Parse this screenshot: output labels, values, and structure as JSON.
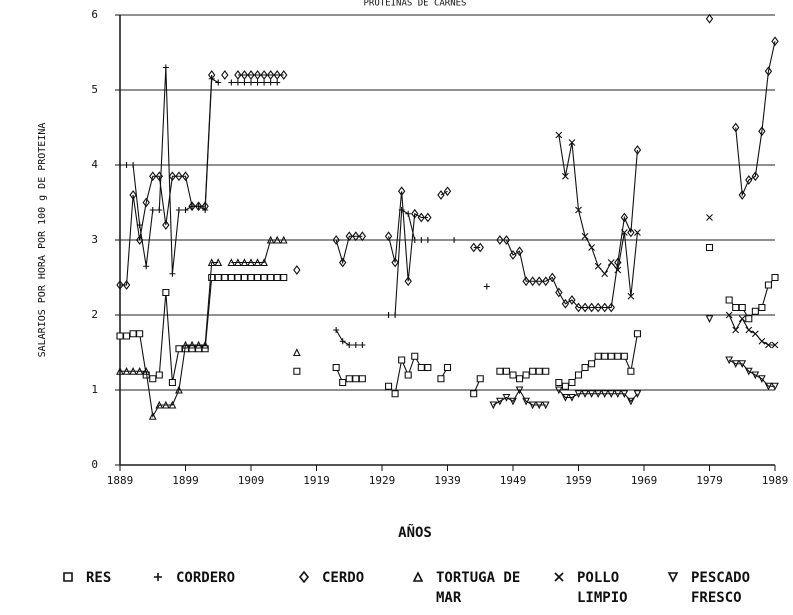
{
  "chart_data": {
    "type": "line",
    "title": "PROTEINAS DE CARNES",
    "y_label": "SALARIOS POR HORA POR 100 g DE PROTEINA",
    "x_label": "AÑOS",
    "xlim": [
      1889,
      1989
    ],
    "xticks": [
      1889,
      1899,
      1909,
      1919,
      1929,
      1939,
      1949,
      1959,
      1969,
      1979,
      1989
    ],
    "ylim": [
      0,
      6
    ],
    "yticks": [
      0,
      1,
      2,
      3,
      4,
      5,
      6
    ],
    "grid": true,
    "x": [
      1889,
      1890,
      1891,
      1892,
      1893,
      1894,
      1895,
      1896,
      1897,
      1898,
      1899,
      1900,
      1901,
      1902,
      1903,
      1904,
      1905,
      1906,
      1907,
      1908,
      1909,
      1910,
      1911,
      1912,
      1913,
      1914,
      1915,
      1916,
      1917,
      1918,
      1919,
      1920,
      1921,
      1922,
      1923,
      1924,
      1925,
      1926,
      1927,
      1928,
      1929,
      1930,
      1931,
      1932,
      1933,
      1934,
      1935,
      1936,
      1937,
      1938,
      1939,
      1940,
      1941,
      1942,
      1943,
      1944,
      1945,
      1946,
      1947,
      1948,
      1949,
      1950,
      1951,
      1952,
      1953,
      1954,
      1955,
      1956,
      1957,
      1958,
      1959,
      1960,
      1961,
      1962,
      1963,
      1964,
      1965,
      1966,
      1967,
      1968,
      1969,
      1970,
      1971,
      1972,
      1973,
      1974,
      1975,
      1976,
      1977,
      1978,
      1979,
      1980,
      1981,
      1982,
      1983,
      1984,
      1985,
      1986,
      1987,
      1988,
      1989
    ],
    "series": [
      {
        "name": "RES",
        "marker": "square",
        "color": "#111111",
        "values": [
          1.72,
          1.72,
          1.75,
          1.75,
          1.2,
          1.15,
          1.2,
          2.3,
          1.1,
          1.55,
          1.55,
          1.55,
          1.55,
          1.55,
          2.5,
          2.5,
          2.5,
          2.5,
          2.5,
          2.5,
          2.5,
          2.5,
          2.5,
          2.5,
          2.5,
          2.5,
          null,
          1.25,
          null,
          null,
          null,
          null,
          null,
          1.3,
          1.1,
          1.15,
          1.15,
          1.15,
          null,
          null,
          null,
          1.05,
          0.95,
          1.4,
          1.2,
          1.45,
          1.3,
          1.3,
          null,
          1.15,
          1.3,
          null,
          null,
          null,
          0.95,
          1.15,
          null,
          null,
          1.25,
          1.25,
          1.2,
          1.15,
          1.2,
          1.25,
          1.25,
          1.25,
          null,
          1.1,
          1.05,
          1.1,
          1.2,
          1.3,
          1.35,
          1.45,
          1.45,
          1.45,
          1.45,
          1.45,
          1.25,
          1.75,
          null,
          null,
          null,
          null,
          null,
          null,
          null,
          null,
          null,
          null,
          2.9,
          null,
          null,
          2.2,
          2.1,
          2.1,
          1.95,
          2.05,
          2.1,
          2.4,
          2.5
        ]
      },
      {
        "name": "CORDERO",
        "marker": "plus",
        "color": "#111111",
        "values": [
          4.0,
          4.0,
          4.0,
          3.2,
          2.65,
          3.4,
          3.4,
          5.3,
          2.55,
          3.4,
          3.4,
          3.45,
          3.45,
          3.4,
          5.15,
          5.1,
          null,
          5.1,
          5.1,
          5.1,
          5.1,
          5.1,
          5.1,
          5.1,
          5.1,
          null,
          null,
          null,
          null,
          null,
          null,
          null,
          null,
          1.8,
          1.65,
          1.6,
          1.6,
          1.6,
          null,
          null,
          null,
          2.0,
          2.0,
          3.4,
          3.35,
          3.0,
          3.0,
          3.0,
          null,
          null,
          null,
          3.0,
          null,
          null,
          null,
          null,
          2.38,
          null,
          null,
          null,
          null,
          null,
          null,
          null,
          null,
          null,
          null,
          null,
          null,
          null,
          null,
          null,
          null,
          null,
          null,
          null,
          null,
          null,
          null,
          null,
          null,
          null,
          null,
          null,
          null,
          null,
          null,
          null,
          null,
          null,
          null,
          null,
          null,
          null,
          null,
          null,
          null,
          null,
          null,
          null,
          null
        ]
      },
      {
        "name": "CERDO",
        "marker": "diamond",
        "color": "#111111",
        "values": [
          2.4,
          2.4,
          3.6,
          3.0,
          3.5,
          3.85,
          3.85,
          3.2,
          3.85,
          3.85,
          3.85,
          3.45,
          3.45,
          3.45,
          5.2,
          null,
          5.2,
          null,
          5.2,
          5.2,
          5.2,
          5.2,
          5.2,
          5.2,
          5.2,
          5.2,
          null,
          2.6,
          null,
          null,
          null,
          null,
          null,
          3.0,
          2.7,
          3.05,
          3.05,
          3.05,
          null,
          null,
          null,
          3.05,
          2.7,
          3.65,
          2.45,
          3.35,
          3.3,
          3.3,
          null,
          3.6,
          3.65,
          null,
          null,
          null,
          2.9,
          2.9,
          null,
          null,
          3.0,
          3.0,
          2.8,
          2.85,
          2.45,
          2.45,
          2.45,
          2.45,
          2.5,
          2.3,
          2.15,
          2.2,
          2.1,
          2.1,
          2.1,
          2.1,
          2.1,
          2.1,
          2.7,
          3.3,
          3.1,
          4.2,
          null,
          null,
          null,
          null,
          null,
          null,
          null,
          null,
          null,
          null,
          5.95,
          null,
          null,
          null,
          4.5,
          3.6,
          3.8,
          3.85,
          4.45,
          5.25,
          5.65
        ]
      },
      {
        "name": "TORTUGA DE MAR",
        "marker": "triangle",
        "color": "#111111",
        "values": [
          1.25,
          1.25,
          1.25,
          1.25,
          1.25,
          0.65,
          0.8,
          0.8,
          0.8,
          1.0,
          1.6,
          1.6,
          1.6,
          1.6,
          2.7,
          2.7,
          null,
          2.7,
          2.7,
          2.7,
          2.7,
          2.7,
          2.7,
          3.0,
          3.0,
          3.0,
          null,
          1.5,
          null,
          null,
          null,
          null,
          null,
          null,
          null,
          null,
          null,
          null,
          null,
          null,
          null,
          null,
          null,
          null,
          null,
          null,
          null,
          null,
          null,
          null,
          null,
          null,
          null,
          null,
          null,
          null,
          null,
          null,
          null,
          null,
          null,
          null,
          null,
          null,
          null,
          null,
          null,
          null,
          null,
          null,
          null,
          null,
          null,
          null,
          null,
          null,
          null,
          null,
          null,
          null,
          null,
          null,
          null,
          null,
          null,
          null,
          null,
          null,
          null,
          null,
          null,
          null,
          null,
          null,
          null,
          null,
          null,
          null,
          null,
          null,
          null
        ]
      },
      {
        "name": "POLLO LIMPIO",
        "marker": "x",
        "color": "#111111",
        "values": [
          null,
          null,
          null,
          null,
          null,
          null,
          null,
          null,
          null,
          null,
          null,
          null,
          null,
          null,
          null,
          null,
          null,
          null,
          null,
          null,
          null,
          null,
          null,
          null,
          null,
          null,
          null,
          null,
          null,
          null,
          null,
          null,
          null,
          null,
          null,
          null,
          null,
          null,
          null,
          null,
          null,
          null,
          null,
          null,
          null,
          null,
          null,
          null,
          null,
          null,
          null,
          null,
          null,
          null,
          null,
          null,
          null,
          null,
          null,
          null,
          null,
          null,
          null,
          null,
          null,
          null,
          null,
          4.4,
          3.85,
          4.3,
          3.4,
          3.05,
          2.9,
          2.65,
          2.55,
          2.7,
          2.6,
          3.1,
          2.25,
          3.1,
          null,
          null,
          null,
          null,
          null,
          null,
          null,
          null,
          null,
          null,
          3.3,
          null,
          null,
          2.0,
          1.8,
          1.95,
          1.8,
          1.75,
          1.65,
          1.6,
          1.6
        ]
      },
      {
        "name": "PESCADO FRESCO",
        "marker": "triangle-down",
        "color": "#111111",
        "values": [
          null,
          null,
          null,
          null,
          null,
          null,
          null,
          null,
          null,
          null,
          null,
          null,
          null,
          null,
          null,
          null,
          null,
          null,
          null,
          null,
          null,
          null,
          null,
          null,
          null,
          null,
          null,
          null,
          null,
          null,
          null,
          null,
          null,
          null,
          null,
          null,
          null,
          null,
          null,
          null,
          null,
          null,
          null,
          null,
          null,
          null,
          null,
          null,
          null,
          null,
          null,
          null,
          null,
          null,
          null,
          null,
          null,
          0.8,
          0.85,
          0.9,
          0.85,
          1.0,
          0.85,
          0.8,
          0.8,
          0.8,
          null,
          1.0,
          0.9,
          0.9,
          0.95,
          0.95,
          0.95,
          0.95,
          0.95,
          0.95,
          0.95,
          0.95,
          0.85,
          0.95,
          null,
          null,
          null,
          null,
          null,
          null,
          null,
          null,
          null,
          null,
          1.95,
          null,
          null,
          1.4,
          1.35,
          1.35,
          1.25,
          1.2,
          1.15,
          1.05,
          1.05
        ]
      }
    ]
  }
}
